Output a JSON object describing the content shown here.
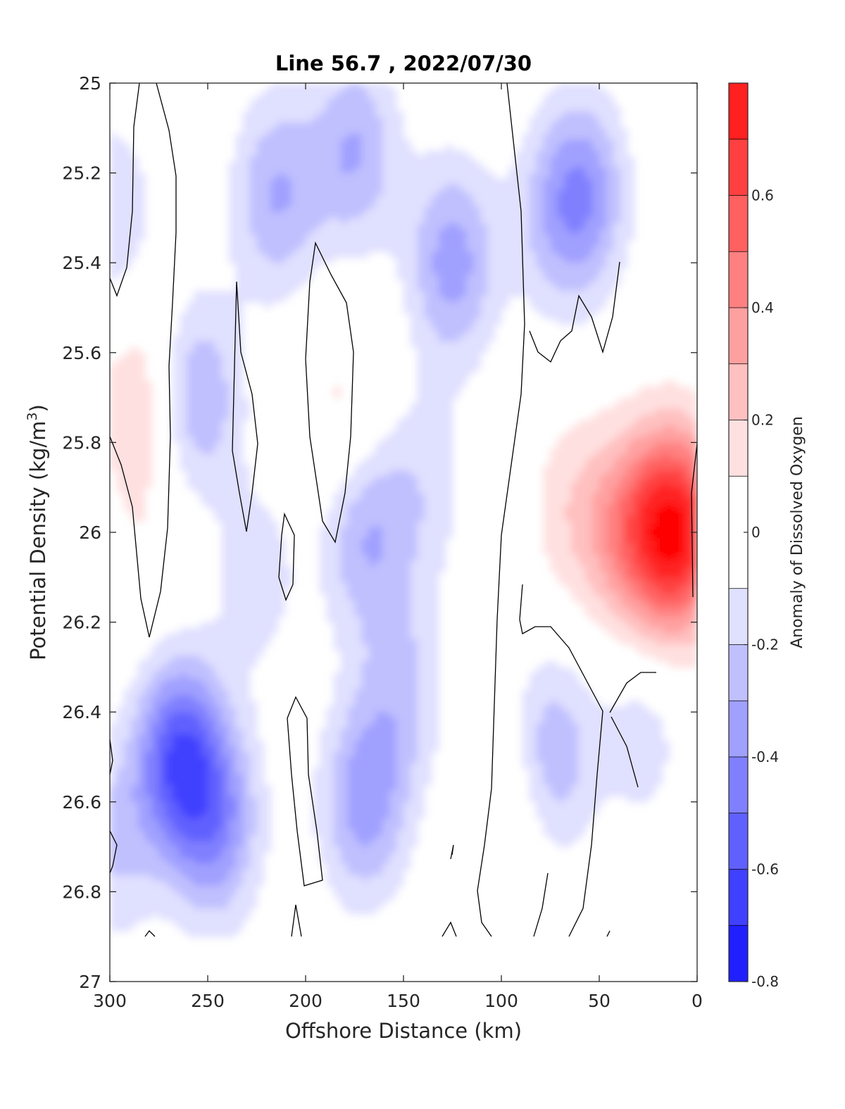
{
  "chart_data": {
    "type": "heatmap",
    "title": "Line 56.7 , 2022/07/30",
    "xlabel": "Offshore Distance (km)",
    "ylabel_main": "Potential Density (kg/m",
    "ylabel_sup": "3",
    "ylabel_end": ")",
    "colorbar_label": "Anomaly of Dissolved Oxygen",
    "xlim": [
      300,
      0
    ],
    "ylim": [
      25,
      27
    ],
    "x_reversed": true,
    "y_reversed": true,
    "xticks": [
      300,
      250,
      200,
      150,
      100,
      50,
      0
    ],
    "xtick_labels": [
      "300",
      "250",
      "200",
      "150",
      "100",
      "50",
      "0"
    ],
    "yticks": [
      25,
      25.2,
      25.4,
      25.6,
      25.8,
      26,
      26.2,
      26.4,
      26.6,
      26.8,
      27
    ],
    "ytick_labels": [
      "25",
      "25.2",
      "25.4",
      "25.6",
      "25.8",
      "26",
      "26.2",
      "26.4",
      "26.6",
      "26.8",
      "27"
    ],
    "clim": [
      -0.8,
      0.8
    ],
    "colorbar_ticks": [
      -0.8,
      -0.6,
      -0.4,
      -0.2,
      0,
      0.2,
      0.4,
      0.6
    ],
    "colorbar_tick_labels": [
      "-0.8",
      "-0.6",
      "-0.4",
      "-0.2",
      "0",
      "0.2",
      "0.4",
      "0.6"
    ],
    "contour_levels": [
      -0.8,
      -0.7,
      -0.6,
      -0.5,
      -0.4,
      -0.3,
      -0.2,
      -0.1,
      0.1,
      0.2,
      0.3,
      0.4,
      0.5,
      0.6,
      0.7,
      0.8
    ],
    "colorbar_colors": [
      "#0000ff",
      "#2020ff",
      "#4040ff",
      "#6060ff",
      "#8080ff",
      "#a0a0ff",
      "#c0c0ff",
      "#e0e0ff",
      "#ffffff",
      "#ffe0e0",
      "#ffc0c0",
      "#ffa0a0",
      "#ff8080",
      "#ff6060",
      "#ff4040",
      "#ff2020",
      "#ff0000"
    ],
    "data_extent_density": [
      25,
      26.9
    ],
    "grid": false,
    "features": [
      {
        "x": 300,
        "y": 25.3,
        "value": -0.2
      },
      {
        "x": 285,
        "y": 25.7,
        "value": 0.2
      },
      {
        "x": 280,
        "y": 26.05,
        "value": 0.08
      },
      {
        "x": 265,
        "y": 26.5,
        "value": -0.55
      },
      {
        "x": 245,
        "y": 26.65,
        "value": -0.35
      },
      {
        "x": 300,
        "y": 26.7,
        "value": -0.2
      },
      {
        "x": 255,
        "y": 25.7,
        "value": -0.3
      },
      {
        "x": 215,
        "y": 25.25,
        "value": -0.3
      },
      {
        "x": 225,
        "y": 26.1,
        "value": -0.15
      },
      {
        "x": 180,
        "y": 25.75,
        "value": 0.15
      },
      {
        "x": 175,
        "y": 25.15,
        "value": -0.3
      },
      {
        "x": 170,
        "y": 26.0,
        "value": -0.3
      },
      {
        "x": 170,
        "y": 26.6,
        "value": -0.35
      },
      {
        "x": 150,
        "y": 26.35,
        "value": -0.2
      },
      {
        "x": 125,
        "y": 25.4,
        "value": -0.35
      },
      {
        "x": 140,
        "y": 25.9,
        "value": -0.15
      },
      {
        "x": 105,
        "y": 26.9,
        "value": -0.05
      },
      {
        "x": 95,
        "y": 26.6,
        "value": 0.15
      },
      {
        "x": 75,
        "y": 26.5,
        "value": -0.3
      },
      {
        "x": 58,
        "y": 25.25,
        "value": -0.35
      },
      {
        "x": 75,
        "y": 25.3,
        "value": -0.15
      },
      {
        "x": 65,
        "y": 25.95,
        "value": 0.15
      },
      {
        "x": 35,
        "y": 26.0,
        "value": 0.35
      },
      {
        "x": 10,
        "y": 26.0,
        "value": 0.75
      },
      {
        "x": 28,
        "y": 26.45,
        "value": -0.15
      }
    ]
  }
}
